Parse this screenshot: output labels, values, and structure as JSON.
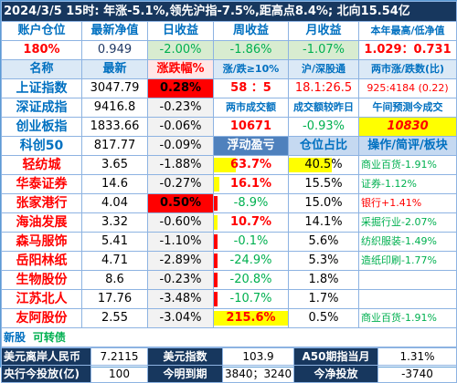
{
  "title": "2024/3/5   15时: 年涨-5.1%,领先沪指-7.5%,距高点8.4%; 北向15.54亿",
  "account": {
    "headers": [
      "账户仓位",
      "最新净值",
      "日收益",
      "周收益",
      "月收益",
      "本年最高/低净值"
    ],
    "values": [
      "180%",
      "0.949",
      "-2.00%",
      "-1.86%",
      "-1.07%",
      "1.029：0.731"
    ]
  },
  "index_headers": [
    "名称",
    "最新",
    "涨跌幅%",
    "涨/跌≥10%",
    "沪/深股通",
    "两市涨/跌数(比)"
  ],
  "indices": [
    {
      "name": "上证指数",
      "price": "3047.79",
      "change": "0.28%"
    },
    {
      "name": "深证成指",
      "price": "9416.8",
      "change": "-0.23%"
    },
    {
      "name": "创业板指",
      "price": "1833.66",
      "change": "-0.06%"
    },
    {
      "name": "科创50",
      "price": "817.77",
      "change": "-0.09%"
    }
  ],
  "market": {
    "limit_counts": "58 ：5",
    "connect": "18.1:26.5",
    "updown": "925:4184 (0.22)",
    "turnover_header": "两市成交额",
    "turnover_compare_header": "成交额较昨日",
    "forecast_header": "午间预测今成交",
    "turnover": "10671",
    "turnover_compare": "-0.93%",
    "forecast": "10830"
  },
  "stock_headers": {
    "float_pl": "浮动盈亏",
    "position": "仓位占比",
    "ops": "操作/简评/板块"
  },
  "stocks": [
    {
      "name": "轻纺城",
      "price": "3.65",
      "change": "-1.88%",
      "pl": "63.7%",
      "pl_pct": 0.3,
      "pos": "40.5%",
      "pos_pct": 0.62,
      "note": "商业百货-1.91%"
    },
    {
      "name": "华泰证券",
      "price": "14.6",
      "change": "-0.27%",
      "pl": "16.1%",
      "pl_pct": 0.08,
      "pos": "15.5%",
      "pos_pct": 0,
      "note": "证券-1.12%"
    },
    {
      "name": "张家港行",
      "price": "4.04",
      "change": "0.50%",
      "pl": "-8.9%",
      "pl_pct": 0,
      "pos": "15.0%",
      "pos_pct": 0,
      "note": "银行+1.41%"
    },
    {
      "name": "海油发展",
      "price": "3.32",
      "change": "-0.60%",
      "pl": "10.7%",
      "pl_pct": 0.05,
      "pos": "14.1%",
      "pos_pct": 0,
      "note": "采掘行业-2.07%"
    },
    {
      "name": "森马服饰",
      "price": "5.41",
      "change": "-1.10%",
      "pl": "-0.1%",
      "pl_pct": 0,
      "pos": "5.6%",
      "pos_pct": 0,
      "note": "纺织服装-1.49%"
    },
    {
      "name": "岳阳林纸",
      "price": "4.71",
      "change": "-2.89%",
      "pl": "-24.9%",
      "pl_pct": 0,
      "pos": "5.3%",
      "pos_pct": 0,
      "note": "造纸印刷-1.77%"
    },
    {
      "name": "生物股份",
      "price": "8.6",
      "change": "-0.23%",
      "pl": "-20.8%",
      "pl_pct": 0,
      "pos": "1.8%",
      "pos_pct": 0,
      "note": ""
    },
    {
      "name": "江苏北人",
      "price": "17.76",
      "change": "-3.48%",
      "pl": "-10.7%",
      "pl_pct": 0,
      "pos": "1.7%",
      "pos_pct": 0,
      "note": ""
    },
    {
      "name": "友阿股份",
      "price": "2.55",
      "change": "-3.04%",
      "pl": "215.6%",
      "pl_pct": 1.0,
      "pos": "0.5%",
      "pos_pct": 0,
      "note": "商业百货-1.91%"
    }
  ],
  "newshare": {
    "label": "新股",
    "bond": "可转债"
  },
  "footer": {
    "usdcnh_label": "美元离岸人民币",
    "usdcnh": "7.2115",
    "dxy_label": "美元指数",
    "dxy": "103.9",
    "a50_label": "A50期指当月",
    "a50": "1.31%",
    "pboc_label": "央行今投放(亿)",
    "pboc": "100",
    "due_label": "今明到期",
    "due": "3840；3240",
    "net_label": "今净投放",
    "net": "-3740"
  },
  "colors": {
    "title_bg": "#17375e",
    "header_blue": "#0070c0",
    "up": "#ff0000",
    "down": "#00b050",
    "bar_red": "#ff0000"
  }
}
